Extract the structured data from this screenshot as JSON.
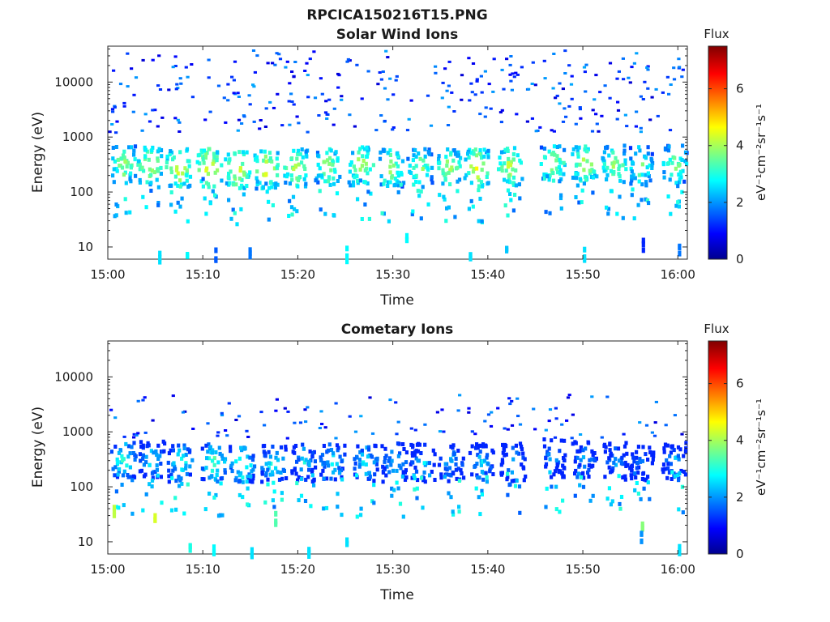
{
  "figure_title": "RPCICA150216T15.PNG",
  "chart_data": [
    {
      "type": "heatmap",
      "title": "Solar Wind Ions",
      "xlabel": "Time",
      "ylabel": "Energy (eV)",
      "x_ticks": [
        "15:00",
        "15:10",
        "15:20",
        "15:30",
        "15:40",
        "15:50",
        "16:00"
      ],
      "xlim_minutes": [
        0,
        61
      ],
      "y_scale": "log",
      "y_ticks": [
        {
          "value": 10,
          "label": "10"
        },
        {
          "value": 100,
          "label": "100"
        },
        {
          "value": 1000,
          "label": "1000"
        },
        {
          "value": 10000,
          "label": "10000"
        }
      ],
      "ylim": [
        6,
        45000
      ],
      "colorbar": {
        "title": "Flux",
        "label": "eV⁻¹cm⁻²sr⁻¹s⁻¹",
        "ticks": [
          0,
          2,
          4,
          6
        ],
        "range": [
          0,
          7.5
        ],
        "colormap": "jet"
      },
      "clusters": [
        {
          "t": 1.5,
          "e": 350,
          "v": 4.6
        },
        {
          "t": 4.3,
          "e": 330,
          "v": 4.8
        },
        {
          "t": 7.3,
          "e": 300,
          "v": 5.0
        },
        {
          "t": 10.5,
          "e": 300,
          "v": 5.2
        },
        {
          "t": 13.5,
          "e": 280,
          "v": 5.0
        },
        {
          "t": 16.5,
          "e": 280,
          "v": 5.0
        },
        {
          "t": 19.7,
          "e": 300,
          "v": 4.8
        },
        {
          "t": 23.0,
          "e": 320,
          "v": 4.6
        },
        {
          "t": 26.5,
          "e": 320,
          "v": 4.8
        },
        {
          "t": 29.7,
          "e": 300,
          "v": 4.6
        },
        {
          "t": 32.7,
          "e": 300,
          "v": 4.4
        },
        {
          "t": 35.7,
          "e": 300,
          "v": 4.6
        },
        {
          "t": 38.7,
          "e": 300,
          "v": 5.0
        },
        {
          "t": 42.2,
          "e": 320,
          "v": 4.8
        },
        {
          "t": 46.7,
          "e": 360,
          "v": 4.6
        },
        {
          "t": 50.0,
          "e": 340,
          "v": 4.8
        },
        {
          "t": 53.2,
          "e": 340,
          "v": 4.6
        },
        {
          "t": 55.9,
          "e": 320,
          "v": 4.2
        },
        {
          "t": 59.5,
          "e": 340,
          "v": 4.4
        }
      ],
      "low_energy_flux": [
        {
          "t": 5.3,
          "e": 8,
          "v": 2.6
        },
        {
          "t": 8.2,
          "e": 8,
          "v": 2.8
        },
        {
          "t": 11.2,
          "e": 8,
          "v": 1.6
        },
        {
          "t": 14.8,
          "e": 8,
          "v": 1.8
        },
        {
          "t": 25.0,
          "e": 8,
          "v": 2.8
        },
        {
          "t": 31.3,
          "e": 14,
          "v": 2.8
        },
        {
          "t": 38.0,
          "e": 8,
          "v": 2.6
        },
        {
          "t": 41.8,
          "e": 8,
          "v": 2.4
        },
        {
          "t": 50.0,
          "e": 8,
          "v": 2.6
        },
        {
          "t": 56.2,
          "e": 12,
          "v": 1.2
        },
        {
          "t": 60.0,
          "e": 10,
          "v": 1.8
        }
      ]
    },
    {
      "type": "heatmap",
      "title": "Cometary Ions",
      "xlabel": "Time",
      "ylabel": "Energy (eV)",
      "x_ticks": [
        "15:00",
        "15:10",
        "15:20",
        "15:30",
        "15:40",
        "15:50",
        "16:00"
      ],
      "xlim_minutes": [
        0,
        61
      ],
      "y_scale": "log",
      "y_ticks": [
        {
          "value": 10,
          "label": "10"
        },
        {
          "value": 100,
          "label": "100"
        },
        {
          "value": 1000,
          "label": "1000"
        },
        {
          "value": 10000,
          "label": "10000"
        }
      ],
      "ylim": [
        6,
        45000
      ],
      "colorbar": {
        "title": "Flux",
        "label": "eV⁻¹cm⁻²sr⁻¹s⁻¹",
        "ticks": [
          0,
          2,
          4,
          6
        ],
        "range": [
          0,
          7.5
        ],
        "colormap": "jet"
      },
      "clusters": [
        {
          "t": 1.5,
          "e": 350,
          "v": 3.8
        },
        {
          "t": 4.5,
          "e": 330,
          "v": 3.4
        },
        {
          "t": 7.5,
          "e": 300,
          "v": 3.6
        },
        {
          "t": 11.0,
          "e": 300,
          "v": 4.0
        },
        {
          "t": 14.0,
          "e": 280,
          "v": 3.8
        },
        {
          "t": 17.3,
          "e": 280,
          "v": 3.6
        },
        {
          "t": 20.5,
          "e": 300,
          "v": 3.2
        },
        {
          "t": 23.5,
          "e": 320,
          "v": 3.4
        },
        {
          "t": 27.0,
          "e": 300,
          "v": 3.4
        },
        {
          "t": 30.0,
          "e": 300,
          "v": 3.2
        },
        {
          "t": 33.0,
          "e": 300,
          "v": 3.0
        },
        {
          "t": 36.0,
          "e": 300,
          "v": 3.0
        },
        {
          "t": 39.2,
          "e": 300,
          "v": 3.2
        },
        {
          "t": 42.5,
          "e": 300,
          "v": 3.0
        },
        {
          "t": 46.7,
          "e": 360,
          "v": 2.8
        },
        {
          "t": 50.0,
          "e": 340,
          "v": 2.8
        },
        {
          "t": 53.3,
          "e": 320,
          "v": 2.8
        },
        {
          "t": 56.0,
          "e": 320,
          "v": 2.6
        },
        {
          "t": 59.5,
          "e": 320,
          "v": 2.8
        }
      ],
      "low_energy_flux": [
        {
          "t": 0.5,
          "e": 40,
          "v": 4.2
        },
        {
          "t": 4.8,
          "e": 25,
          "v": 4.4
        },
        {
          "t": 8.5,
          "e": 8,
          "v": 3.0
        },
        {
          "t": 11.0,
          "e": 8,
          "v": 2.8
        },
        {
          "t": 15.0,
          "e": 8,
          "v": 2.6
        },
        {
          "t": 17.5,
          "e": 30,
          "v": 3.4
        },
        {
          "t": 21.0,
          "e": 8,
          "v": 2.6
        },
        {
          "t": 25.0,
          "e": 12,
          "v": 2.6
        },
        {
          "t": 56.1,
          "e": 25,
          "v": 3.8
        },
        {
          "t": 56.0,
          "e": 14,
          "v": 2.0
        },
        {
          "t": 60.0,
          "e": 9,
          "v": 2.6
        }
      ]
    }
  ]
}
